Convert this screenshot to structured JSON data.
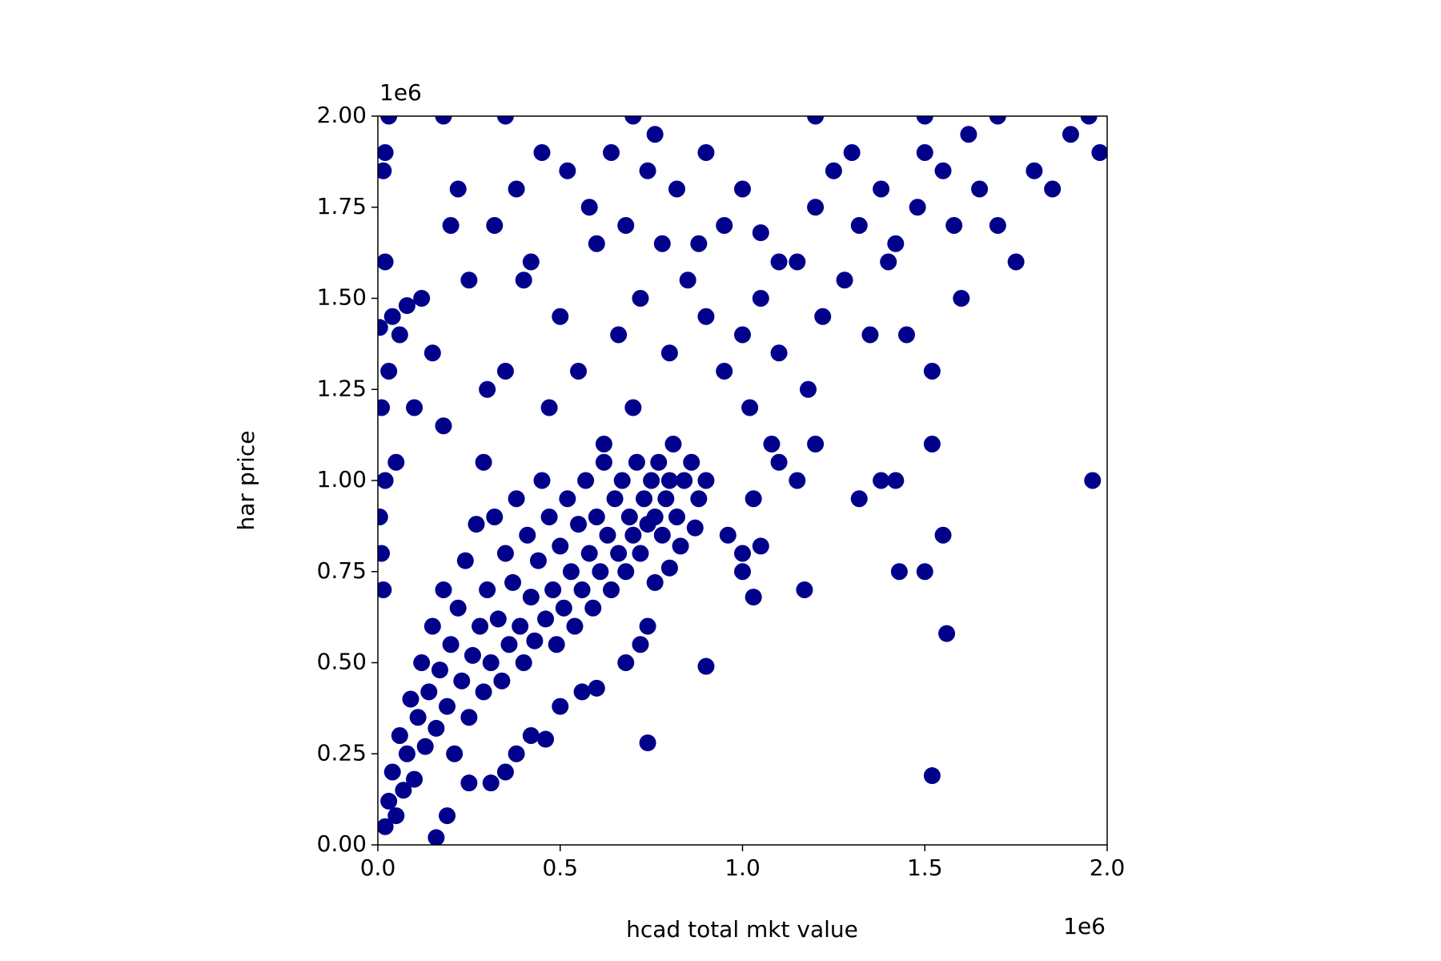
{
  "chart_data": {
    "type": "scatter",
    "x_label": "hcad total mkt value",
    "y_label": "har price",
    "x_offset_label": "1e6",
    "y_offset_label": "1e6",
    "color": "#00008b",
    "xlim": [
      0,
      2000000
    ],
    "ylim": [
      0,
      2000000
    ],
    "xticks": [
      {
        "value": 0,
        "label": "0.0"
      },
      {
        "value": 500000,
        "label": "0.5"
      },
      {
        "value": 1000000,
        "label": "1.0"
      },
      {
        "value": 1500000,
        "label": "1.5"
      },
      {
        "value": 2000000,
        "label": "2.0"
      }
    ],
    "yticks": [
      {
        "value": 0,
        "label": "0.00"
      },
      {
        "value": 250000,
        "label": "0.25"
      },
      {
        "value": 500000,
        "label": "0.50"
      },
      {
        "value": 750000,
        "label": "0.75"
      },
      {
        "value": 1000000,
        "label": "1.00"
      },
      {
        "value": 1250000,
        "label": "1.25"
      },
      {
        "value": 1500000,
        "label": "1.50"
      },
      {
        "value": 1750000,
        "label": "1.75"
      },
      {
        "value": 2000000,
        "label": "2.00"
      }
    ],
    "x": [
      20000,
      30000,
      40000,
      50000,
      60000,
      70000,
      80000,
      90000,
      100000,
      110000,
      120000,
      130000,
      140000,
      150000,
      160000,
      170000,
      180000,
      190000,
      200000,
      210000,
      220000,
      230000,
      240000,
      250000,
      260000,
      270000,
      280000,
      290000,
      300000,
      310000,
      320000,
      330000,
      340000,
      350000,
      360000,
      370000,
      380000,
      390000,
      400000,
      410000,
      420000,
      430000,
      440000,
      450000,
      460000,
      470000,
      480000,
      490000,
      500000,
      510000,
      520000,
      530000,
      540000,
      550000,
      560000,
      570000,
      580000,
      590000,
      600000,
      610000,
      620000,
      630000,
      640000,
      650000,
      660000,
      670000,
      680000,
      690000,
      700000,
      710000,
      720000,
      730000,
      740000,
      750000,
      760000,
      770000,
      780000,
      790000,
      800000,
      810000,
      820000,
      840000,
      860000,
      880000,
      900000,
      160000,
      190000,
      250000,
      310000,
      350000,
      380000,
      420000,
      460000,
      500000,
      560000,
      600000,
      680000,
      720000,
      740000,
      760000,
      800000,
      830000,
      870000,
      5000,
      10000,
      15000,
      20000,
      5000,
      10000,
      20000,
      15000,
      20000,
      30000,
      40000,
      50000,
      60000,
      80000,
      100000,
      120000,
      150000,
      180000,
      200000,
      220000,
      250000,
      290000,
      300000,
      320000,
      350000,
      380000,
      400000,
      420000,
      450000,
      470000,
      500000,
      520000,
      550000,
      580000,
      600000,
      620000,
      640000,
      660000,
      680000,
      700000,
      720000,
      740000,
      760000,
      780000,
      800000,
      820000,
      850000,
      880000,
      900000,
      950000,
      1000000,
      1020000,
      1050000,
      1080000,
      1100000,
      1150000,
      1180000,
      1200000,
      1220000,
      1250000,
      1280000,
      1300000,
      1320000,
      1350000,
      1380000,
      1400000,
      1420000,
      1450000,
      1480000,
      1500000,
      1520000,
      1550000,
      1580000,
      1600000,
      1620000,
      1650000,
      1700000,
      1750000,
      1800000,
      1850000,
      1900000,
      1980000,
      1950000,
      1000000,
      1050000,
      1200000,
      1100000,
      900000,
      950000,
      1030000,
      1100000,
      1150000,
      30000,
      180000,
      350000,
      700000,
      1200000,
      1500000,
      1700000,
      1960000,
      1520000,
      1560000,
      1550000,
      1520000,
      1500000,
      1430000,
      1420000,
      1380000,
      1320000,
      1170000,
      1030000,
      900000,
      740000,
      1000000,
      1050000,
      1000000,
      960000
    ],
    "values": [
      50000,
      120000,
      200000,
      80000,
      300000,
      150000,
      250000,
      400000,
      180000,
      350000,
      500000,
      270000,
      420000,
      600000,
      320000,
      480000,
      700000,
      380000,
      550000,
      250000,
      650000,
      450000,
      780000,
      350000,
      520000,
      880000,
      600000,
      420000,
      700000,
      500000,
      900000,
      620000,
      450000,
      800000,
      550000,
      720000,
      950000,
      600000,
      500000,
      850000,
      680000,
      560000,
      780000,
      1000000,
      620000,
      900000,
      700000,
      550000,
      820000,
      650000,
      950000,
      750000,
      600000,
      880000,
      700000,
      1000000,
      800000,
      650000,
      900000,
      750000,
      1050000,
      850000,
      700000,
      950000,
      800000,
      1000000,
      750000,
      900000,
      850000,
      1050000,
      800000,
      950000,
      880000,
      1000000,
      900000,
      1050000,
      850000,
      950000,
      1000000,
      1100000,
      900000,
      1000000,
      1050000,
      950000,
      1000000,
      20000,
      80000,
      170000,
      170000,
      200000,
      250000,
      300000,
      290000,
      380000,
      420000,
      430000,
      500000,
      550000,
      600000,
      720000,
      760000,
      820000,
      870000,
      900000,
      800000,
      700000,
      1000000,
      1420000,
      1200000,
      1600000,
      1850000,
      1900000,
      1300000,
      1450000,
      1050000,
      1400000,
      1480000,
      1200000,
      1500000,
      1350000,
      1150000,
      1700000,
      1800000,
      1550000,
      1050000,
      1250000,
      1700000,
      1300000,
      1800000,
      1550000,
      1600000,
      1900000,
      1200000,
      1450000,
      1850000,
      1300000,
      1750000,
      1650000,
      1100000,
      1900000,
      1400000,
      1700000,
      1200000,
      1500000,
      1850000,
      1950000,
      1650000,
      1350000,
      1800000,
      1550000,
      1650000,
      1450000,
      1300000,
      1400000,
      1200000,
      1500000,
      1100000,
      1350000,
      1600000,
      1250000,
      1750000,
      1450000,
      1850000,
      1550000,
      1900000,
      1700000,
      1400000,
      1800000,
      1600000,
      1650000,
      1400000,
      1750000,
      1900000,
      1300000,
      1850000,
      1700000,
      1500000,
      1950000,
      1800000,
      1700000,
      1600000,
      1850000,
      1800000,
      1950000,
      1900000,
      2000000,
      1800000,
      1680000,
      1100000,
      1600000,
      1900000,
      1700000,
      950000,
      1050000,
      1000000,
      2000000,
      2000000,
      2000000,
      2000000,
      2000000,
      2000000,
      2000000,
      1000000,
      190000,
      580000,
      850000,
      1100000,
      750000,
      750000,
      1000000,
      1000000,
      950000,
      700000,
      680000,
      490000,
      280000,
      750000,
      820000,
      800000,
      850000
    ]
  }
}
